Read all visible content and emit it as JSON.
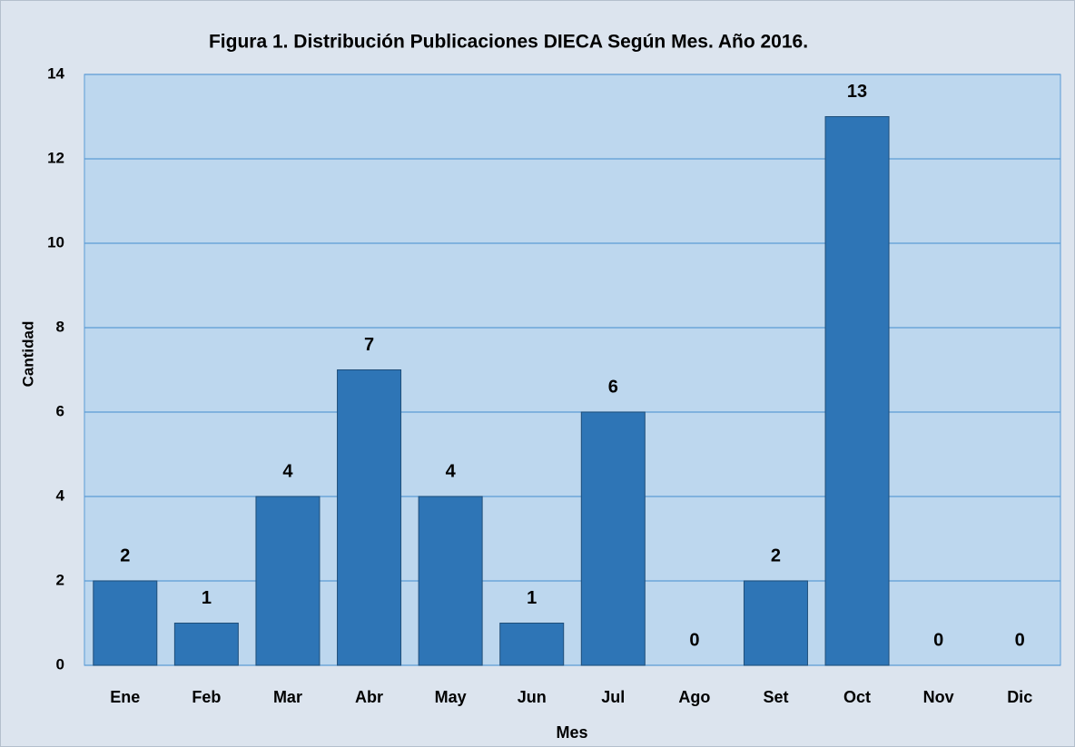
{
  "chart_data": {
    "type": "bar",
    "title": "Figura 1. Distribución Publicaciones DIECA Según Mes. Año 2016.",
    "x_label": "Mes",
    "y_label": "Cantidad",
    "categories": [
      "Ene",
      "Feb",
      "Mar",
      "Abr",
      "May",
      "Jun",
      "Jul",
      "Ago",
      "Set",
      "Oct",
      "Nov",
      "Dic"
    ],
    "values": [
      2,
      1,
      4,
      7,
      4,
      1,
      6,
      0,
      2,
      13,
      0,
      0
    ],
    "color": "#2e75b6",
    "ylim": [
      0,
      14
    ],
    "yticks": [
      0,
      2,
      4,
      6,
      8,
      10,
      12,
      14
    ],
    "grid": true
  }
}
